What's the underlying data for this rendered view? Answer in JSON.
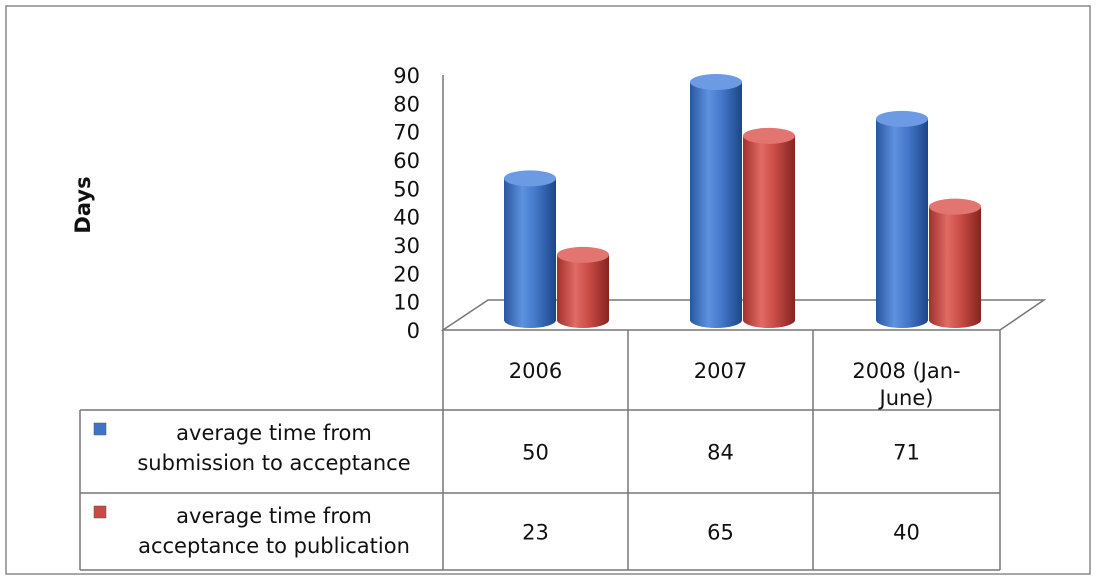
{
  "chart_data": {
    "type": "bar",
    "style": "3d-cylinder",
    "ylabel": "Days",
    "ylim": [
      0,
      90
    ],
    "y_ticks": [
      "0",
      "10",
      "20",
      "30",
      "40",
      "50",
      "60",
      "70",
      "80",
      "90"
    ],
    "categories": [
      [
        "2006"
      ],
      [
        "2007"
      ],
      [
        "2008 (Jan-",
        "June)"
      ]
    ],
    "series": [
      {
        "name": "average time from submission to acceptance",
        "legend_lines": [
          "average time from",
          "submission to acceptance"
        ],
        "color": "#3f73c6",
        "values": [
          50,
          84,
          71
        ]
      },
      {
        "name": "average time from acceptance to publication",
        "legend_lines": [
          "average time from",
          "acceptance to publication"
        ],
        "color": "#c94a45",
        "values": [
          23,
          65,
          40
        ]
      }
    ],
    "grid": false,
    "legend": "data-table"
  }
}
